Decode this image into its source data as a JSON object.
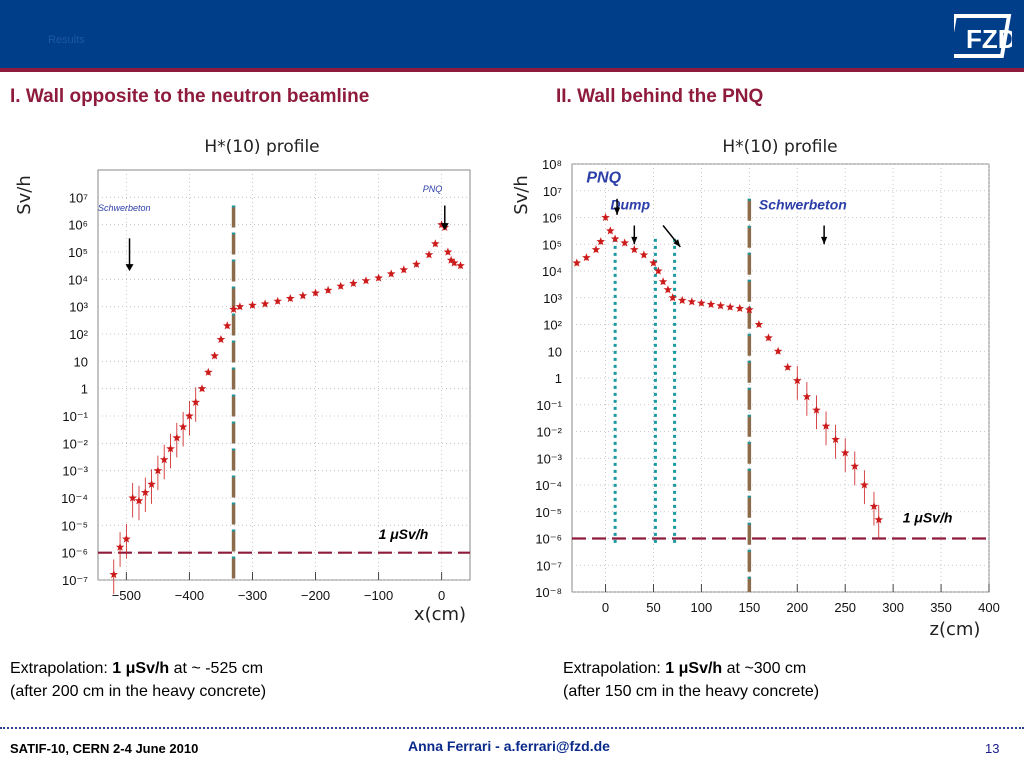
{
  "header": {
    "ghost_text": "Results"
  },
  "headings": {
    "left": "I.  Wall opposite to the neutron beamline",
    "right": "II.  Wall behind the PNQ"
  },
  "colors": {
    "marker": "#cc1b1b",
    "wall": "#8b6b4a",
    "limit": "#8e1b3c",
    "teal": "#1a9aa0",
    "accent": "#8e1b3c",
    "brand": "#003e8a"
  },
  "chart_data": [
    {
      "type": "scatter",
      "title": "H*(10) profile",
      "xlabel": "x(cm)",
      "ylabel": "Sv/h",
      "xlim": [
        -545,
        45
      ],
      "ylog": true,
      "ylim_exp": [
        -7,
        8
      ],
      "xticks": [
        -500,
        -400,
        -300,
        -200,
        -100,
        0
      ],
      "yticks": [
        "10⁻⁷",
        "10⁻⁶",
        "10⁻⁵",
        "10⁻⁴",
        "10⁻³",
        "10⁻²",
        "10⁻¹",
        "1",
        "10",
        "10²",
        "10³",
        "10⁴",
        "10⁵",
        "10⁶",
        "10⁷"
      ],
      "yticks_exp": [
        -7,
        -6,
        -5,
        -4,
        -3,
        -2,
        -1,
        0,
        1,
        2,
        3,
        4,
        5,
        6,
        7
      ],
      "wall_lines_x": [
        -330
      ],
      "limit_line_exp": -6,
      "annotations": [
        {
          "text": "Schwerbeton",
          "x": -545,
          "exp": 6.5,
          "arrow_exp": [
            5.5,
            4.3
          ],
          "arrow_x": -495
        },
        {
          "text": "PNQ",
          "x": -30,
          "exp": 7.2,
          "arrow_exp": [
            6.7,
            5.8
          ],
          "arrow_x": 5
        },
        {
          "text": "1 μSv/h",
          "x": -100,
          "exp": -5.5
        }
      ],
      "series": [
        {
          "x": [
            -520,
            -510,
            -500,
            -490,
            -480,
            -470,
            -460,
            -450,
            -440,
            -430,
            -420,
            -410,
            -400,
            -390,
            -380,
            -370,
            -360,
            -350,
            -340,
            -330,
            -320,
            -300,
            -280,
            -260,
            -240,
            -220,
            -200,
            -180,
            -160,
            -140,
            -120,
            -100,
            -80,
            -60,
            -40,
            -20,
            -10,
            0,
            5,
            10,
            15,
            20,
            30
          ],
          "exp": [
            -6.8,
            -5.8,
            -5.5,
            -4.0,
            -4.1,
            -3.8,
            -3.5,
            -3.0,
            -2.6,
            -2.2,
            -1.8,
            -1.4,
            -1.0,
            -0.5,
            0.0,
            0.6,
            1.2,
            1.8,
            2.3,
            2.9,
            3.0,
            3.05,
            3.1,
            3.2,
            3.3,
            3.4,
            3.5,
            3.6,
            3.75,
            3.85,
            3.95,
            4.05,
            4.2,
            4.35,
            4.55,
            4.9,
            5.3,
            6.0,
            5.9,
            5.0,
            4.7,
            4.6,
            4.5
          ]
        }
      ]
    },
    {
      "type": "scatter",
      "title": "H*(10) profile",
      "xlabel": "z(cm)",
      "ylabel": "Sv/h",
      "xlim": [
        -35,
        400
      ],
      "ylog": true,
      "ylim_exp": [
        -8,
        8
      ],
      "xticks": [
        0,
        50,
        100,
        150,
        200,
        250,
        300,
        350,
        400
      ],
      "yticks": [
        "10⁻⁸",
        "10⁻⁷",
        "10⁻⁶",
        "10⁻⁵",
        "10⁻⁴",
        "10⁻³",
        "10⁻²",
        "10⁻¹",
        "1",
        "10",
        "10²",
        "10³",
        "10⁴",
        "10⁵",
        "10⁶",
        "10⁷",
        "10⁸"
      ],
      "yticks_exp": [
        -8,
        -7,
        -6,
        -5,
        -4,
        -3,
        -2,
        -1,
        0,
        1,
        2,
        3,
        4,
        5,
        6,
        7,
        8
      ],
      "wall_lines_x": [
        150
      ],
      "teal_lines_x": [
        10,
        52,
        72
      ],
      "limit_line_exp": -6,
      "annotations": [
        {
          "text": "PNQ",
          "x": -20,
          "exp": 7.3
        },
        {
          "text": "Dump",
          "x": 5,
          "exp": 6.3
        },
        {
          "text": "Schwerbeton",
          "x": 160,
          "exp": 6.3
        },
        {
          "text": "1 μSv/h",
          "x": 310,
          "exp": -5.4
        }
      ],
      "series": [
        {
          "x": [
            -30,
            -20,
            -10,
            -5,
            0,
            5,
            10,
            20,
            30,
            40,
            50,
            55,
            60,
            65,
            70,
            80,
            90,
            100,
            110,
            120,
            130,
            140,
            150,
            160,
            170,
            180,
            190,
            200,
            210,
            220,
            230,
            240,
            250,
            260,
            270,
            280,
            285
          ],
          "exp": [
            4.3,
            4.5,
            4.8,
            5.1,
            6.0,
            5.5,
            5.2,
            5.05,
            4.8,
            4.6,
            4.3,
            4.0,
            3.6,
            3.3,
            3.0,
            2.9,
            2.85,
            2.8,
            2.75,
            2.7,
            2.65,
            2.6,
            2.55,
            2.0,
            1.5,
            1.0,
            0.4,
            -0.1,
            -0.7,
            -1.2,
            -1.8,
            -2.3,
            -2.8,
            -3.3,
            -4.0,
            -4.8,
            -5.3
          ]
        }
      ]
    }
  ],
  "captions": {
    "left_line1_prefix": "Extrapolation: ",
    "left_line1_bold": "1 μSv/h",
    "left_line1_suffix": " at ~ -525 cm",
    "left_line2": "(after 200 cm in the heavy concrete)",
    "right_line1_prefix": "Extrapolation: ",
    "right_line1_bold": "1 μSv/h",
    "right_line1_suffix": " at ~300 cm",
    "right_line2": "(after 150 cm in the heavy concrete)"
  },
  "footer": {
    "left": "SATIF-10, CERN  2-4 June 2010",
    "center": "Anna Ferrari  -   a.ferrari@fzd.de",
    "page": "13"
  },
  "logo": {
    "text": "FZD"
  }
}
